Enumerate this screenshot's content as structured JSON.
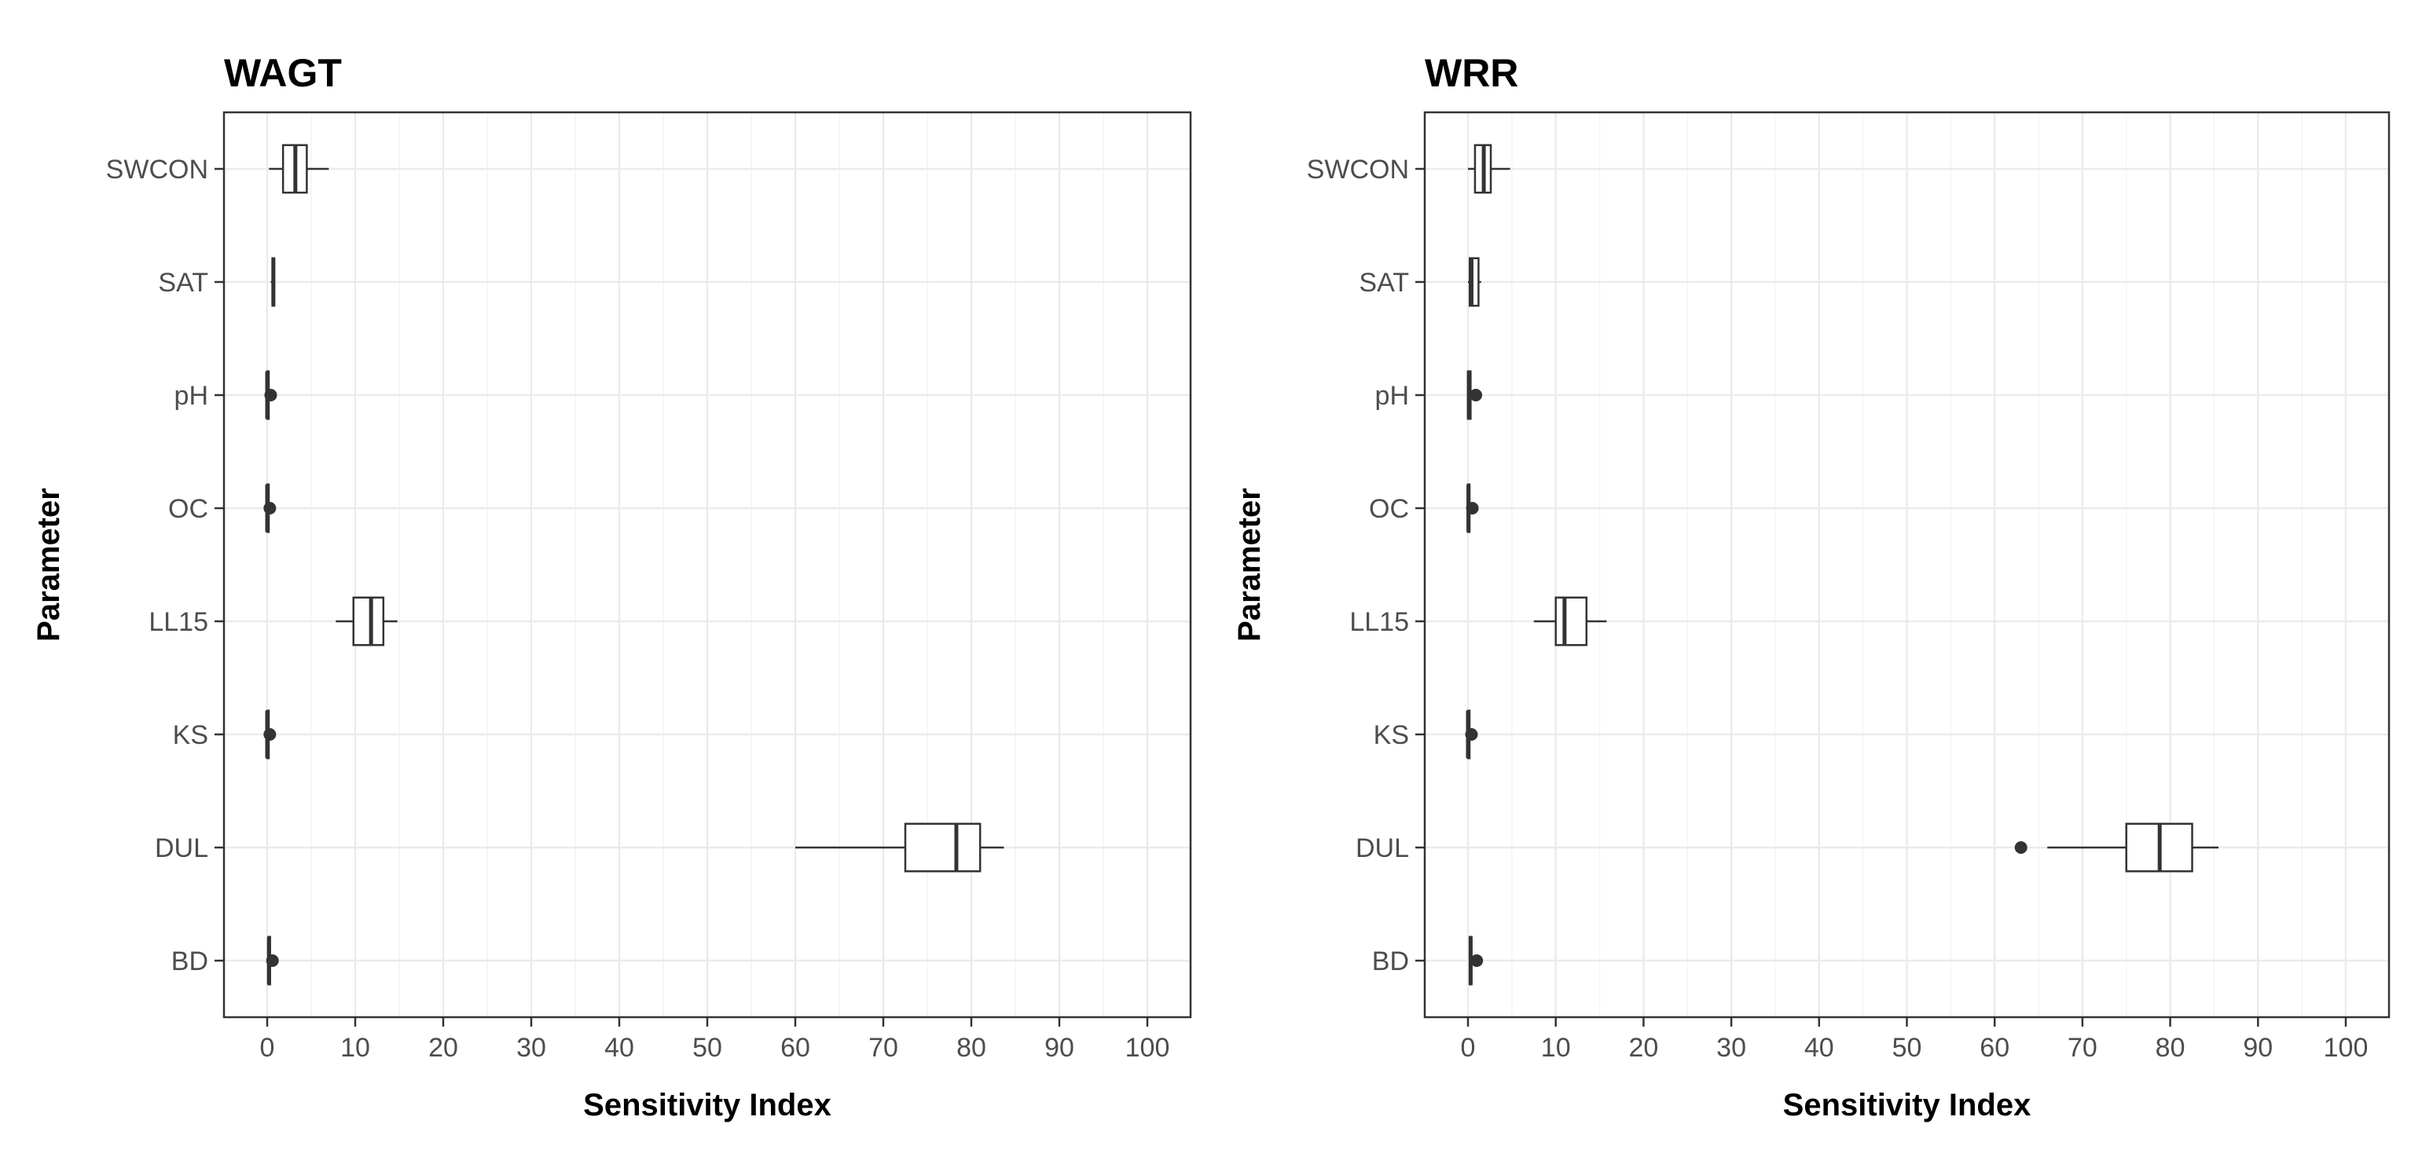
{
  "chart_data": [
    {
      "type": "boxplot",
      "title": "WAGT",
      "xlabel": "Sensitivity Index",
      "ylabel": "Parameter",
      "xlim": [
        0,
        100
      ],
      "xticks": [
        0,
        10,
        20,
        30,
        40,
        50,
        60,
        70,
        80,
        90,
        100
      ],
      "grid": true,
      "categories": [
        "SWCON",
        "SAT",
        "pH",
        "OC",
        "LL15",
        "KS",
        "DUL",
        "BD"
      ],
      "boxes": [
        {
          "category": "SWCON",
          "whisker_low": 0.2,
          "q1": 1.8,
          "median": 3.2,
          "q3": 4.5,
          "whisker_high": 7.0,
          "outliers": []
        },
        {
          "category": "SAT",
          "whisker_low": 0.4,
          "q1": 0.6,
          "median": 0.7,
          "q3": 0.8,
          "whisker_high": 0.9,
          "outliers": []
        },
        {
          "category": "pH",
          "whisker_low": 0.0,
          "q1": 0.0,
          "median": 0.0,
          "q3": 0.05,
          "whisker_high": 0.1,
          "outliers": [
            0.4
          ]
        },
        {
          "category": "OC",
          "whisker_low": 0.0,
          "q1": 0.0,
          "median": 0.0,
          "q3": 0.05,
          "whisker_high": 0.1,
          "outliers": [
            0.3
          ]
        },
        {
          "category": "LL15",
          "whisker_low": 7.8,
          "q1": 9.8,
          "median": 11.8,
          "q3": 13.2,
          "whisker_high": 14.8,
          "outliers": []
        },
        {
          "category": "KS",
          "whisker_low": 0.0,
          "q1": 0.0,
          "median": 0.0,
          "q3": 0.05,
          "whisker_high": 0.1,
          "outliers": [
            0.3
          ]
        },
        {
          "category": "DUL",
          "whisker_low": 60.0,
          "q1": 72.5,
          "median": 78.3,
          "q3": 81.0,
          "whisker_high": 83.7,
          "outliers": []
        },
        {
          "category": "BD",
          "whisker_low": 0.1,
          "q1": 0.15,
          "median": 0.2,
          "q3": 0.25,
          "whisker_high": 0.3,
          "outliers": [
            0.6
          ]
        }
      ]
    },
    {
      "type": "boxplot",
      "title": "WRR",
      "xlabel": "Sensitivity Index",
      "ylabel": "Parameter",
      "xlim": [
        0,
        100
      ],
      "xticks": [
        0,
        10,
        20,
        30,
        40,
        50,
        60,
        70,
        80,
        90,
        100
      ],
      "grid": true,
      "categories": [
        "SWCON",
        "SAT",
        "pH",
        "OC",
        "LL15",
        "KS",
        "DUL",
        "BD"
      ],
      "boxes": [
        {
          "category": "SWCON",
          "whisker_low": 0.0,
          "q1": 0.8,
          "median": 1.8,
          "q3": 2.6,
          "whisker_high": 4.8,
          "outliers": []
        },
        {
          "category": "SAT",
          "whisker_low": 0.0,
          "q1": 0.2,
          "median": 0.4,
          "q3": 1.2,
          "whisker_high": 1.5,
          "outliers": []
        },
        {
          "category": "pH",
          "whisker_low": 0.0,
          "q1": 0.0,
          "median": 0.1,
          "q3": 0.3,
          "whisker_high": 0.5,
          "outliers": [
            0.9
          ]
        },
        {
          "category": "OC",
          "whisker_low": 0.0,
          "q1": 0.0,
          "median": 0.05,
          "q3": 0.1,
          "whisker_high": 0.2,
          "outliers": [
            0.5
          ]
        },
        {
          "category": "LL15",
          "whisker_low": 7.5,
          "q1": 10.0,
          "median": 11.0,
          "q3": 13.5,
          "whisker_high": 15.8,
          "outliers": []
        },
        {
          "category": "KS",
          "whisker_low": 0.0,
          "q1": 0.0,
          "median": 0.0,
          "q3": 0.05,
          "whisker_high": 0.1,
          "outliers": [
            0.4
          ]
        },
        {
          "category": "DUL",
          "whisker_low": 66.0,
          "q1": 75.0,
          "median": 78.8,
          "q3": 82.5,
          "whisker_high": 85.5,
          "outliers": [
            63.0
          ]
        },
        {
          "category": "BD",
          "whisker_low": 0.1,
          "q1": 0.2,
          "median": 0.3,
          "q3": 0.4,
          "whisker_high": 0.5,
          "outliers": [
            1.0
          ]
        }
      ]
    }
  ]
}
